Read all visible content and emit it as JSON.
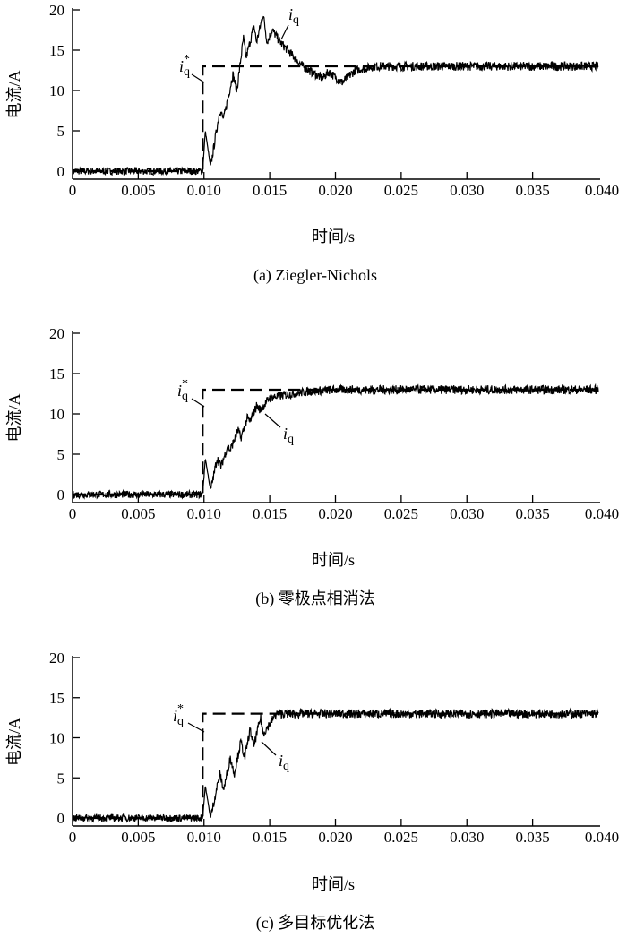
{
  "chart_data": [
    {
      "type": "line",
      "caption": "(a) Ziegler-Nichols",
      "xlabel": "时间/s",
      "ylabel": "电流/A",
      "xlim": [
        0,
        0.04
      ],
      "ylim": [
        0,
        20
      ],
      "xticks": [
        "0",
        "0.005",
        "0.010",
        "0.015",
        "0.020",
        "0.025",
        "0.030",
        "0.035",
        "0.040"
      ],
      "yticks": [
        "0",
        "5",
        "10",
        "15",
        "20"
      ],
      "grid": false,
      "series": [
        {
          "name": "iq*",
          "style": "dashed",
          "x": [
            0,
            0.0099,
            0.0099,
            0.04
          ],
          "y": [
            0,
            0,
            13,
            13
          ]
        },
        {
          "name": "iq",
          "style": "solid",
          "noisy": true,
          "x": [
            0,
            0.0099,
            0.0101,
            0.0105,
            0.0112,
            0.0115,
            0.0122,
            0.0125,
            0.013,
            0.0132,
            0.0138,
            0.014,
            0.0145,
            0.0148,
            0.0152,
            0.0158,
            0.0175,
            0.019,
            0.0195,
            0.0205,
            0.0215,
            0.023,
            0.04
          ],
          "y": [
            0,
            0,
            5,
            0.5,
            7.5,
            6.5,
            12,
            10,
            16.5,
            14,
            18,
            16,
            19.5,
            16,
            17.5,
            16,
            13,
            11.5,
            12.3,
            11,
            12.5,
            13,
            13
          ]
        }
      ]
    },
    {
      "type": "line",
      "caption": "(b) 零极点相消法",
      "xlabel": "时间/s",
      "ylabel": "电流/A",
      "xlim": [
        0,
        0.04
      ],
      "ylim": [
        0,
        20
      ],
      "xticks": [
        "0",
        "0.005",
        "0.010",
        "0.015",
        "0.020",
        "0.025",
        "0.030",
        "0.035",
        "0.040"
      ],
      "yticks": [
        "0",
        "5",
        "10",
        "15",
        "20"
      ],
      "grid": false,
      "series": [
        {
          "name": "iq*",
          "style": "dashed",
          "x": [
            0,
            0.0099,
            0.0099,
            0.04
          ],
          "y": [
            0,
            0,
            13,
            13
          ]
        },
        {
          "name": "iq",
          "style": "solid",
          "noisy": true,
          "x": [
            0,
            0.0099,
            0.0101,
            0.0105,
            0.011,
            0.0113,
            0.0118,
            0.012,
            0.0126,
            0.0128,
            0.0133,
            0.0135,
            0.014,
            0.0143,
            0.015,
            0.016,
            0.018,
            0.02,
            0.04
          ],
          "y": [
            0,
            0,
            4.5,
            0.5,
            4.5,
            3.5,
            6,
            5.5,
            8,
            7,
            9.5,
            9,
            11,
            10.5,
            12,
            12.3,
            12.8,
            13,
            13
          ]
        }
      ]
    },
    {
      "type": "line",
      "caption": "(c) 多目标优化法",
      "xlabel": "时间/s",
      "ylabel": "电流/A",
      "xlim": [
        0,
        0.04
      ],
      "ylim": [
        0,
        20
      ],
      "xticks": [
        "0",
        "0.005",
        "0.010",
        "0.015",
        "0.020",
        "0.025",
        "0.030",
        "0.035",
        "0.040"
      ],
      "yticks": [
        "0",
        "5",
        "10",
        "15",
        "20"
      ],
      "grid": false,
      "series": [
        {
          "name": "iq*",
          "style": "dashed",
          "x": [
            0,
            0.0099,
            0.0099,
            0.04
          ],
          "y": [
            0,
            0,
            13,
            13
          ]
        },
        {
          "name": "iq",
          "style": "solid",
          "noisy": true,
          "x": [
            0,
            0.0099,
            0.0101,
            0.0105,
            0.0112,
            0.0115,
            0.012,
            0.0123,
            0.0128,
            0.0131,
            0.0135,
            0.0138,
            0.0143,
            0.0145,
            0.0155,
            0.016,
            0.04
          ],
          "y": [
            0,
            0,
            4,
            0,
            5.5,
            3.5,
            7.5,
            5.5,
            9.5,
            7.5,
            11,
            9,
            12.5,
            10.5,
            13,
            13,
            13
          ]
        }
      ]
    }
  ]
}
